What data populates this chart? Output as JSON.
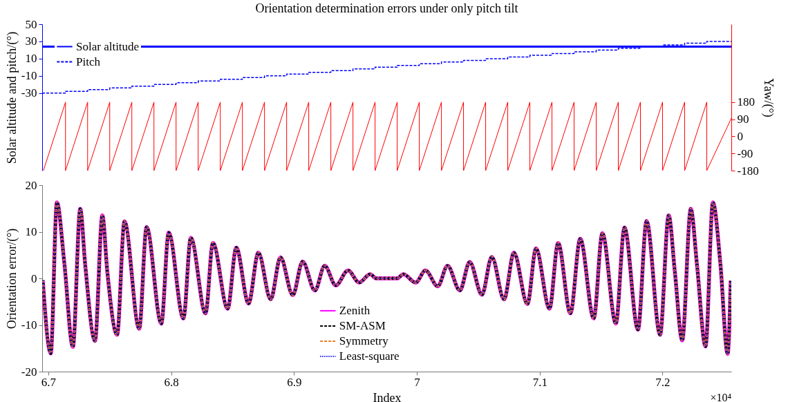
{
  "chart_data": [
    {
      "type": "line",
      "title": "Orientation determination errors under only pitch tilt",
      "ylabel": "Solar altitude and pitch/(°)",
      "y2label": "Yaw/(°)",
      "xlim": [
        6.695,
        7.256
      ],
      "xticks": [
        6.7,
        6.8,
        6.9,
        7,
        7.1,
        7.2
      ],
      "ylim": [
        -120,
        50
      ],
      "yticks": [
        -30,
        -10,
        10,
        30,
        50
      ],
      "y2lim": [
        -180,
        590
      ],
      "y2ticks": [
        -180,
        -90,
        0,
        90,
        180
      ],
      "tick_labels": "y",
      "grid": false,
      "legend": "top left",
      "series": [
        {
          "name": "Solar altitude",
          "color": "#0000ff",
          "line_style": "solid",
          "x": [
            6.695,
            7.256
          ],
          "values": [
            24,
            24
          ]
        },
        {
          "name": "Pitch",
          "type": "step",
          "color": "#0000ff",
          "line_style": "dashed",
          "x": [
            6.695,
            6.714,
            6.732,
            6.75,
            6.768,
            6.786,
            6.804,
            6.822,
            6.84,
            6.858,
            6.876,
            6.894,
            6.912,
            6.93,
            6.948,
            6.966,
            6.984,
            7.002,
            7.02,
            7.038,
            7.056,
            7.074,
            7.092,
            7.11,
            7.128,
            7.146,
            7.164,
            7.182,
            7.2,
            7.218,
            7.236,
            7.256
          ],
          "values": [
            -30,
            -28,
            -26,
            -24,
            -22,
            -20,
            -18,
            -16,
            -14,
            -12,
            -10,
            -8,
            -6,
            -4,
            -2,
            0,
            2,
            4,
            6,
            8,
            10,
            12,
            14,
            16,
            18,
            20,
            22,
            24,
            26,
            28,
            30,
            30
          ]
        },
        {
          "color": "#ff0000",
          "line_style": "solid",
          "axis": "y2",
          "x": [
            6.696,
            6.714,
            6.714,
            6.732,
            6.732,
            6.75,
            6.75,
            6.768,
            6.768,
            6.786,
            6.786,
            6.804,
            6.804,
            6.822,
            6.822,
            6.84,
            6.84,
            6.858,
            6.858,
            6.876,
            6.876,
            6.894,
            6.894,
            6.912,
            6.912,
            6.93,
            6.93,
            6.948,
            6.948,
            6.966,
            6.966,
            6.984,
            6.984,
            7.002,
            7.002,
            7.02,
            7.02,
            7.038,
            7.038,
            7.056,
            7.056,
            7.074,
            7.074,
            7.092,
            7.092,
            7.11,
            7.11,
            7.128,
            7.128,
            7.146,
            7.146,
            7.164,
            7.164,
            7.182,
            7.182,
            7.2,
            7.2,
            7.218,
            7.218,
            7.236,
            7.236,
            7.256
          ],
          "values": [
            -180,
            180,
            -180,
            180,
            -180,
            180,
            -180,
            180,
            -180,
            180,
            -180,
            180,
            -180,
            180,
            -180,
            180,
            -180,
            180,
            -180,
            180,
            -180,
            180,
            -180,
            180,
            -180,
            180,
            -180,
            180,
            -180,
            180,
            -180,
            180,
            -180,
            180,
            -180,
            180,
            -180,
            180,
            -180,
            180,
            -180,
            180,
            -180,
            180,
            -180,
            180,
            -180,
            180,
            -180,
            180,
            -180,
            180,
            -180,
            180,
            -180,
            180,
            -180,
            180,
            -180,
            180,
            -180,
            95
          ]
        }
      ]
    },
    {
      "type": "line",
      "xlabel": "Index",
      "ylabel": "Orientation error/(°)",
      "xlim": [
        6.695,
        7.256
      ],
      "xticks": [
        6.7,
        6.8,
        6.9,
        7,
        7.1,
        7.2
      ],
      "ylim": [
        -20,
        20
      ],
      "yticks": [
        -20,
        -10,
        0,
        10,
        20
      ],
      "grid": false,
      "legend": "bottom",
      "annotations": [
        "×10⁴"
      ],
      "x": [
        6.6955,
        6.702,
        6.707,
        6.713,
        6.72,
        6.726,
        6.73,
        6.738,
        6.744,
        6.748,
        6.756,
        6.762,
        6.774,
        6.78,
        6.792,
        6.798,
        6.81,
        6.816,
        6.828,
        6.834,
        6.846,
        6.853,
        6.863,
        6.871,
        6.881,
        6.889,
        6.899,
        6.907,
        6.917,
        6.925,
        6.934,
        6.944,
        6.953,
        6.962,
        6.967,
        6.984,
        6.989,
        6.999,
        7.007,
        7.017,
        7.025,
        7.035,
        7.043,
        7.053,
        7.061,
        7.071,
        7.079,
        7.09,
        7.097,
        7.108,
        7.115,
        7.125,
        7.133,
        7.144,
        7.151,
        7.162,
        7.169,
        7.18,
        7.187,
        7.198,
        7.205,
        7.21,
        7.216,
        7.223,
        7.228,
        7.235,
        7.241,
        7.247,
        7.253,
        7.2555
      ],
      "series": [
        {
          "name": "Zenith",
          "color": "#ff00ff",
          "line_style": "solid",
          "values": [
            -0.4,
            -16.1,
            16.3,
            3.4,
            -14.7,
            14.9,
            3.0,
            -13.4,
            13.5,
            1.5,
            -12.1,
            12.2,
            -10.8,
            11.0,
            -9.7,
            9.8,
            -8.6,
            8.7,
            -7.5,
            7.6,
            -6.5,
            6.6,
            -5.4,
            5.5,
            -4.5,
            4.5,
            -3.6,
            3.6,
            -2.6,
            2.7,
            -1.5,
            1.7,
            -0.9,
            0.9,
            0,
            0,
            0.9,
            -0.9,
            1.7,
            -1.7,
            2.7,
            -2.6,
            3.5,
            -3.5,
            4.6,
            -4.5,
            5.5,
            -5.5,
            6.4,
            -6.5,
            7.6,
            -7.5,
            8.5,
            -8.6,
            9.7,
            -9.7,
            10.9,
            -11.0,
            12.3,
            -12.1,
            13.5,
            1.5,
            -13.3,
            14.9,
            3.0,
            -14.6,
            16.3,
            3.4,
            -16.2,
            -0.5
          ]
        },
        {
          "name": "SM-ASM",
          "color": "#000000",
          "line_style": "dashed",
          "values": [
            -0.4,
            -16.1,
            16.3,
            3.4,
            -14.7,
            14.9,
            3.0,
            -13.4,
            13.5,
            1.5,
            -12.1,
            12.2,
            -10.8,
            11.0,
            -9.7,
            9.8,
            -8.6,
            8.7,
            -7.5,
            7.6,
            -6.5,
            6.6,
            -5.4,
            5.5,
            -4.5,
            4.5,
            -3.6,
            3.6,
            -2.6,
            2.7,
            -1.5,
            1.7,
            -0.9,
            0.9,
            0,
            0,
            0.9,
            -0.9,
            1.7,
            -1.7,
            2.7,
            -2.6,
            3.5,
            -3.5,
            4.6,
            -4.5,
            5.5,
            -5.5,
            6.4,
            -6.5,
            7.6,
            -7.5,
            8.5,
            -8.6,
            9.7,
            -9.7,
            10.9,
            -11.0,
            12.3,
            -12.1,
            13.5,
            1.5,
            -13.3,
            14.9,
            3.0,
            -14.6,
            16.3,
            3.4,
            -16.2,
            -0.5
          ]
        },
        {
          "name": "Symmetry",
          "color": "#f0801e",
          "line_style": "dashed",
          "values": [
            -0.4,
            -16.1,
            16.3,
            3.4,
            -14.7,
            14.9,
            3.0,
            -13.4,
            13.5,
            1.5,
            -12.1,
            12.2,
            -10.8,
            11.0,
            -9.7,
            9.8,
            -8.6,
            8.7,
            -7.5,
            7.6,
            -6.5,
            6.6,
            -5.4,
            5.5,
            -4.5,
            4.5,
            -3.6,
            3.6,
            -2.6,
            2.7,
            -1.5,
            1.7,
            -0.9,
            0.9,
            0,
            0,
            0.9,
            -0.9,
            1.7,
            -1.7,
            2.7,
            -2.6,
            3.5,
            -3.5,
            4.6,
            -4.5,
            5.5,
            -5.5,
            6.4,
            -6.5,
            7.6,
            -7.5,
            8.5,
            -8.6,
            9.7,
            -9.7,
            10.9,
            -11.0,
            12.3,
            -12.1,
            13.5,
            1.5,
            -13.3,
            14.9,
            3.0,
            -14.6,
            16.3,
            3.4,
            -16.2,
            -0.5
          ]
        },
        {
          "name": "Least-square",
          "color": "#0000ff",
          "line_style": "dotted",
          "values": [
            -0.4,
            -16.1,
            16.3,
            3.4,
            -14.7,
            14.9,
            3.0,
            -13.4,
            13.5,
            1.5,
            -12.1,
            12.2,
            -10.8,
            11.0,
            -9.7,
            9.8,
            -8.6,
            8.7,
            -7.5,
            7.6,
            -6.5,
            6.6,
            -5.4,
            5.5,
            -4.5,
            4.5,
            -3.6,
            3.6,
            -2.6,
            2.7,
            -1.5,
            1.7,
            -0.9,
            0.9,
            0,
            0,
            0.9,
            -0.9,
            1.7,
            -1.7,
            2.7,
            -2.6,
            3.5,
            -3.5,
            4.6,
            -4.5,
            5.5,
            -5.5,
            6.4,
            -6.5,
            7.6,
            -7.5,
            8.5,
            -8.6,
            9.7,
            -9.7,
            10.9,
            -11.0,
            12.3,
            -12.1,
            13.5,
            1.5,
            -13.3,
            14.9,
            3.0,
            -14.6,
            16.3,
            3.4,
            -16.2,
            -0.5
          ]
        }
      ]
    }
  ]
}
